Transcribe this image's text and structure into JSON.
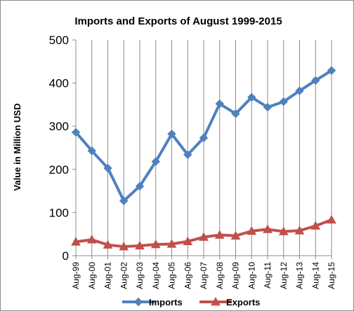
{
  "chart_data": {
    "type": "line",
    "title": "Imports and Exports of August 1999-2015",
    "xlabel": "",
    "ylabel": "Value in  Million USD",
    "categories": [
      "Aug-99",
      "Aug-00",
      "Aug-01",
      "Aug-02",
      "Aug-03",
      "Aug-04",
      "Aug-05",
      "Aug-06",
      "Aug-07",
      "Aug-08",
      "Aug-09",
      "Aug-10",
      "Aug-11",
      "Aug-12",
      "Aug-13",
      "Aug-14",
      "Aug-15"
    ],
    "yticks": [
      "0",
      "100",
      "200",
      "300",
      "400",
      "500"
    ],
    "ylim": [
      0,
      500
    ],
    "grid": "vertical",
    "legend_position": "bottom",
    "series": [
      {
        "name": "Imports",
        "color": "#4f81bd",
        "marker": "diamond",
        "values": [
          286,
          243,
          203,
          127,
          161,
          218,
          282,
          234,
          273,
          352,
          329,
          367,
          344,
          357,
          382,
          406,
          429
        ]
      },
      {
        "name": "Exports",
        "color": "#c0504d",
        "marker": "triangle",
        "values": [
          32,
          37,
          25,
          21,
          23,
          26,
          27,
          33,
          43,
          48,
          46,
          57,
          61,
          56,
          58,
          69,
          83
        ]
      }
    ]
  }
}
